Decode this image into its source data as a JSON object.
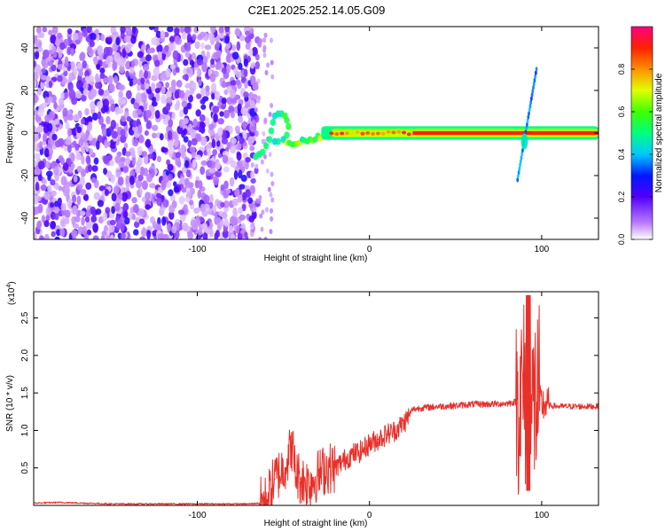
{
  "title": "C2E1.2025.252.14.05.G09",
  "chart_data": [
    {
      "type": "heatmap",
      "title": "",
      "xlabel": "Height of straight line (km)",
      "ylabel": "Frequency (Hz)",
      "xlim": [
        -195,
        133
      ],
      "ylim": [
        -50,
        50
      ],
      "xticks": [
        -100,
        0,
        100
      ],
      "yticks": [
        -40,
        -20,
        0,
        20,
        40
      ],
      "colorbar": {
        "label": "Normalized spectral amplitude",
        "range": [
          0,
          1
        ],
        "ticks": [
          0.0,
          0.2,
          0.4,
          0.6,
          0.8
        ]
      },
      "regions": [
        {
          "name": "noise",
          "x": [
            -195,
            -65
          ],
          "freq": [
            -50,
            50
          ],
          "amplitude": "low"
        },
        {
          "name": "loop",
          "x": [
            -67,
            -45
          ],
          "freq": [
            -12,
            10
          ],
          "amplitude": "medium"
        },
        {
          "name": "rising_track",
          "x": [
            -48,
            -20
          ],
          "freq": [
            -5,
            0
          ],
          "amplitude": "medium-high"
        },
        {
          "name": "carrier",
          "x": [
            -20,
            133
          ],
          "freq": [
            -2,
            2
          ],
          "amplitude": "high"
        },
        {
          "name": "dropout_streak",
          "x": [
            85,
            97
          ],
          "freq": [
            -22,
            30
          ],
          "amplitude": "low-medium"
        }
      ]
    },
    {
      "type": "line",
      "title": "",
      "xlabel": "Height of straight line (km)",
      "ylabel": "SNR (10 * v/v)",
      "y_multiplier": "(x10",
      "y_multiplier_exp": "4",
      "y_multiplier_close": ")",
      "xlim": [
        -195,
        133
      ],
      "ylim": [
        0,
        2.85
      ],
      "xticks": [
        -100,
        0,
        100
      ],
      "yticks": [
        0.5,
        1.0,
        1.5,
        2.0,
        2.5
      ],
      "series": [
        {
          "name": "SNR",
          "color": "#e8302a",
          "x": [
            -195,
            -180,
            -165,
            -150,
            -140,
            -120,
            -100,
            -80,
            -70,
            -64,
            -60,
            -55,
            -50,
            -47,
            -45,
            -43,
            -40,
            -35,
            -30,
            -25,
            -20,
            -15,
            -10,
            -5,
            0,
            5,
            10,
            15,
            20,
            23,
            25,
            30,
            40,
            50,
            60,
            70,
            80,
            85,
            88,
            90,
            92,
            94,
            96,
            98,
            100,
            105,
            110,
            120,
            133
          ],
          "y": [
            0.03,
            0.04,
            0.03,
            0.02,
            0.02,
            0.02,
            0.02,
            0.02,
            0.02,
            0.03,
            0.06,
            0.35,
            0.5,
            0.65,
            0.8,
            0.45,
            0.35,
            0.3,
            0.4,
            0.5,
            0.5,
            0.6,
            0.68,
            0.72,
            0.82,
            0.88,
            0.95,
            1.0,
            1.1,
            1.2,
            1.28,
            1.3,
            1.32,
            1.33,
            1.35,
            1.35,
            1.36,
            1.38,
            1.45,
            1.5,
            1.3,
            1.2,
            1.4,
            1.4,
            1.35,
            1.33,
            1.32,
            1.32,
            1.32
          ]
        }
      ]
    }
  ],
  "colors": {
    "signal": "#e8302a"
  }
}
